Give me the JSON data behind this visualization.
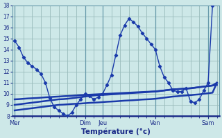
{
  "xlabel": "Température (°c)",
  "background_color": "#cde8e8",
  "line_color": "#1a3aaa",
  "grid_color": "#99bbbb",
  "ymin": 8,
  "ymax": 18,
  "yticks": [
    8,
    9,
    10,
    11,
    12,
    13,
    14,
    15,
    16,
    17,
    18
  ],
  "x_day_labels": [
    "Mer",
    "Dim",
    "Jeu",
    "Ven",
    "Sam"
  ],
  "x_day_positions": [
    0,
    16,
    20,
    32,
    44
  ],
  "x_tick_minor_positions": [
    0,
    2,
    4,
    6,
    8,
    10,
    12,
    14,
    16,
    18,
    20,
    22,
    24,
    26,
    28,
    30,
    32,
    34,
    36,
    38,
    40,
    42,
    44,
    46
  ],
  "total_points": 47,
  "line0": [
    14.8,
    14.2,
    13.3,
    12.8,
    12.5,
    12.2,
    11.8,
    11.0,
    9.6,
    8.8,
    8.5,
    8.2,
    8.0,
    8.3,
    9.0,
    9.5,
    10.0,
    9.8,
    9.5,
    9.7,
    10.0,
    10.8,
    11.7,
    13.5,
    15.3,
    16.2,
    16.8,
    16.5,
    16.1,
    15.5,
    15.0,
    14.5,
    14.0,
    12.5,
    11.5,
    11.0,
    10.3,
    10.2,
    10.2,
    10.5,
    9.3,
    9.2,
    9.5,
    10.3,
    11.0,
    18.0,
    18.2
  ],
  "line1": [
    9.0,
    9.05,
    9.1,
    9.15,
    9.2,
    9.25,
    9.3,
    9.35,
    9.4,
    9.45,
    9.5,
    9.52,
    9.55,
    9.6,
    9.65,
    9.7,
    9.75,
    9.8,
    9.85,
    9.88,
    9.9,
    9.92,
    9.95,
    9.97,
    10.0,
    10.02,
    10.05,
    10.08,
    10.1,
    10.12,
    10.15,
    10.18,
    10.2,
    10.25,
    10.3,
    10.35,
    10.4,
    10.42,
    10.45,
    10.48,
    10.5,
    10.55,
    10.6,
    10.65,
    10.7,
    10.75,
    10.8
  ],
  "line2": [
    9.5,
    9.52,
    9.55,
    9.58,
    9.6,
    9.62,
    9.65,
    9.68,
    9.7,
    9.73,
    9.75,
    9.78,
    9.8,
    9.82,
    9.85,
    9.88,
    9.9,
    9.92,
    9.94,
    9.96,
    9.98,
    10.0,
    10.02,
    10.04,
    10.06,
    10.08,
    10.1,
    10.12,
    10.14,
    10.16,
    10.18,
    10.2,
    10.22,
    10.26,
    10.3,
    10.35,
    10.4,
    10.42,
    10.44,
    10.46,
    10.5,
    10.55,
    10.6,
    10.65,
    10.7,
    10.75,
    11.0
  ],
  "line3": [
    8.5,
    8.55,
    8.6,
    8.65,
    8.7,
    8.75,
    8.8,
    8.85,
    8.9,
    8.95,
    9.0,
    9.02,
    9.05,
    9.08,
    9.1,
    9.12,
    9.15,
    9.18,
    9.2,
    9.22,
    9.25,
    9.28,
    9.3,
    9.32,
    9.35,
    9.38,
    9.4,
    9.42,
    9.45,
    9.48,
    9.5,
    9.52,
    9.55,
    9.6,
    9.65,
    9.7,
    9.75,
    9.78,
    9.82,
    9.85,
    9.88,
    9.92,
    9.95,
    10.0,
    10.05,
    10.1,
    11.0
  ]
}
